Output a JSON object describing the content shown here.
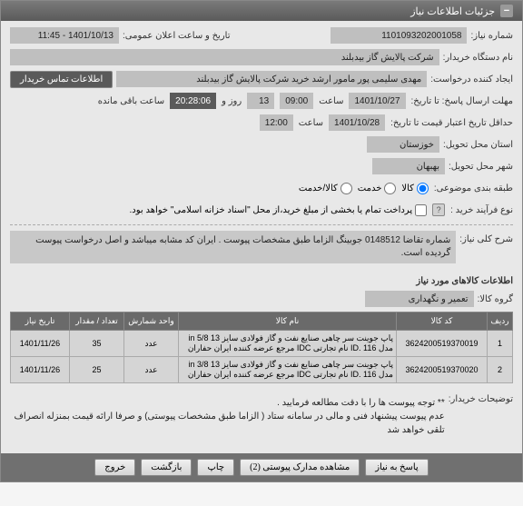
{
  "header": {
    "title": "جزئیات اطلاعات نیاز"
  },
  "fields": {
    "need_no_label": "شماره نیاز:",
    "need_no": "1101093202001058",
    "announce_label": "تاریخ و ساعت اعلان عمومی:",
    "announce_dt": "1401/10/13 - 11:45",
    "org_label": "نام دستگاه خریدار:",
    "org": "شرکت پالایش گاز بیدبلند",
    "creator_label": "ایجاد کننده درخواست:",
    "creator": "مهدی سلیمی پور مامور ارشد خرید شرکت پالایش گاز بیدبلند",
    "buyer_info_btn": "اطلاعات تماس خریدار",
    "deadline_label": "مهلت ارسال پاسخ: تا تاریخ:",
    "deadline_date": "1401/10/27",
    "deadline_time_label": "ساعت",
    "deadline_time": "09:00",
    "days_left": "13",
    "days_label": "روز و",
    "timer": "20:28:06",
    "remain_label": "ساعت باقی مانده",
    "validity_label": "حداقل تاریخ اعتبار قیمت تا تاریخ:",
    "validity_date": "1401/10/28",
    "validity_time": "12:00",
    "province_label": "استان محل تحویل:",
    "province": "خوزستان",
    "city_label": "شهر محل تحویل:",
    "city": "بهبهان",
    "category_label": "طبقه بندی موضوعی:",
    "cat_goods": "کالا",
    "cat_service": "خدمت",
    "cat_both": "کالا/خدمت",
    "process_label": "نوع فرآیند خرید :",
    "process_note": "پرداخت تمام یا بخشی از مبلغ خرید،از محل \"اسناد خزانه اسلامی\" خواهد بود.",
    "summary_label": "شرح کلی نیاز:",
    "summary": "شماره تقاضا 0148512 جوبینگ الزاما طبق مشخصات پیوست . ایران کد مشابه میباشد و اصل درخواست پیوست گردیده است.",
    "items_title": "اطلاعات کالاهای مورد نیاز",
    "group_label": "گروه کالا:",
    "group": "تعمیر و نگهداری",
    "notes_label": "توضیحات خریدار:",
    "notes": "** توجه پیوست ها را با دقت مطالعه فرمایید .\nعدم پیوست پیشنهاد فنی و مالی در سامانه ستاد ( الزاما طبق مشخصات پیوستی) و صرفا ارائه قیمت بمنزله انصراف تلقی خواهد شد"
  },
  "table": {
    "headers": [
      "ردیف",
      "کد کالا",
      "نام کالا",
      "واحد شمارش",
      "تعداد / مقدار",
      "تاریخ نیاز"
    ],
    "rows": [
      [
        "1",
        "3624200519370019",
        "پاپ جوینت سر چاهی صنایع نفت و گاز فولادی سایز 13 5/8 in مدل ID. 116 نام تجارتی IDC مرجع عرضه کننده ایران حفاران",
        "عدد",
        "35",
        "1401/11/26"
      ],
      [
        "2",
        "3624200519370020",
        "پاپ جوینت سر چاهی صنایع نفت و گاز فولادی سایز 13 3/8 in مدل ID. 116 نام تجارتی IDC مرجع عرضه کننده ایران حفاران",
        "عدد",
        "25",
        "1401/11/26"
      ]
    ],
    "col_widths": [
      "28px",
      "100px",
      "auto",
      "60px",
      "60px",
      "65px"
    ]
  },
  "buttons": {
    "respond": "پاسخ به نیاز",
    "attachments": "مشاهده مدارک پیوستی (2)",
    "print": "چاپ",
    "back": "بازگشت",
    "exit": "خروج"
  },
  "colors": {
    "header_bg": "#6a6a6a",
    "field_bg": "#bfbfbf",
    "dark_bg": "#5a5a5a"
  }
}
